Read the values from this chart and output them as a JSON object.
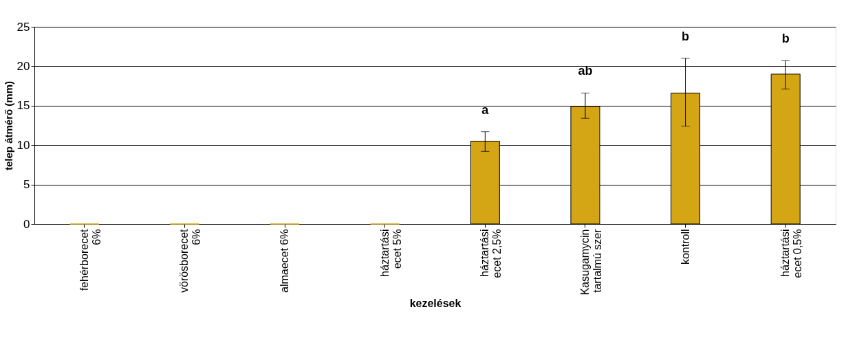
{
  "chart_data": {
    "type": "bar",
    "xlabel": "kezelések",
    "ylabel": "telep átmérő (mm)",
    "categories": [
      "fehérborecet 6%",
      "vörösborecet 6%",
      "almaecet 6%",
      "háztartási ecet 5%",
      "háztartási ecet 2,5%",
      "Kasugamycin tartalmú szer",
      "kontroll",
      "háztartási ecet 0,5%"
    ],
    "values": [
      0,
      0,
      0,
      0,
      10.5,
      14.9,
      16.6,
      19.0
    ],
    "errors": [
      null,
      null,
      null,
      null,
      [
        9.2,
        11.7
      ],
      [
        13.4,
        16.6
      ],
      [
        12.4,
        21.0
      ],
      [
        17.1,
        20.7
      ]
    ],
    "color": "#d4a514",
    "ylim": [
      0,
      25
    ],
    "yticks": [
      0,
      5,
      10,
      15,
      20,
      25
    ],
    "grid": "y",
    "annotations": [
      "a",
      "ab",
      "b",
      "b"
    ]
  }
}
